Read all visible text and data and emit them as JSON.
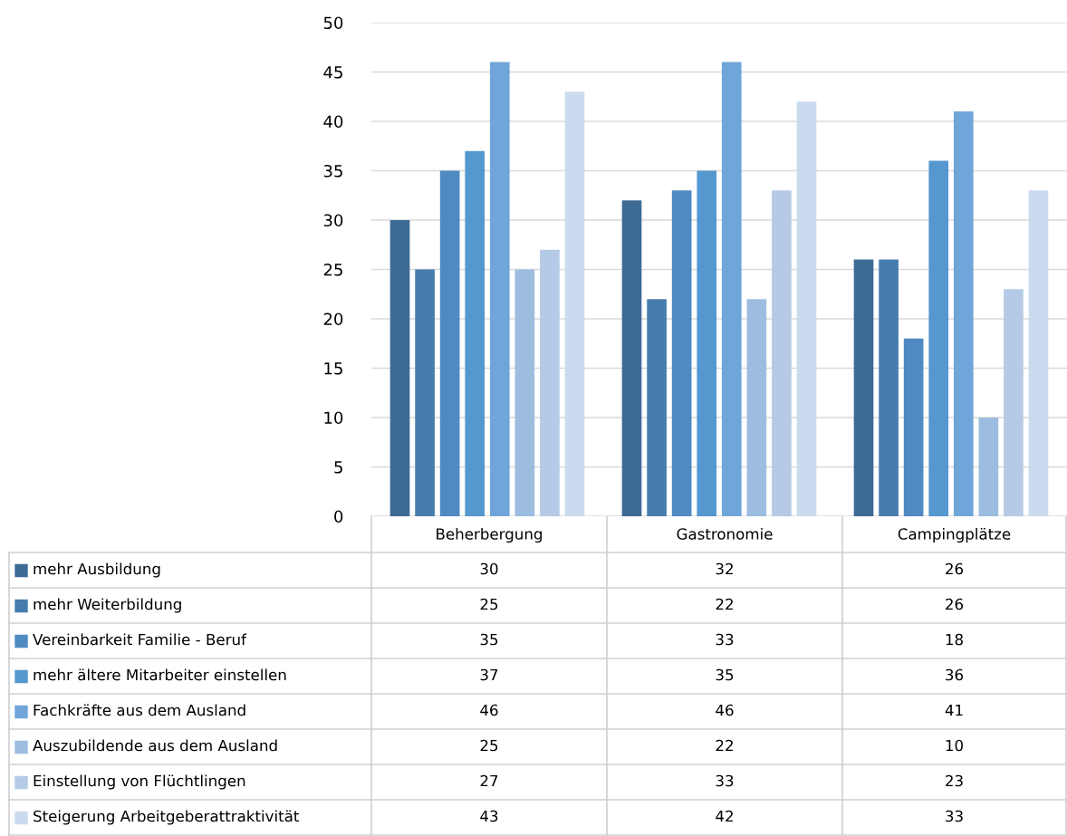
{
  "chart_data": {
    "type": "bar",
    "categories": [
      "Beherbergung",
      "Gastronomie",
      "Campingplätze"
    ],
    "series": [
      {
        "name": "mehr Ausbildung",
        "color": "#3e6a96",
        "values": [
          30,
          32,
          26
        ]
      },
      {
        "name": "mehr Weiterbildung",
        "color": "#477dae",
        "values": [
          25,
          22,
          26
        ]
      },
      {
        "name": "Vereinbarkeit Familie - Beruf",
        "color": "#4f8ac2",
        "values": [
          35,
          33,
          18
        ]
      },
      {
        "name": "mehr ältere Mitarbeiter einstellen",
        "color": "#5597cf",
        "values": [
          37,
          35,
          36
        ]
      },
      {
        "name": "Fachkräfte aus dem Ausland",
        "color": "#6fa5d8",
        "values": [
          46,
          46,
          41
        ]
      },
      {
        "name": "Auszubildende aus dem Ausland",
        "color": "#9dbde0",
        "values": [
          25,
          22,
          10
        ]
      },
      {
        "name": "Einstellung von Flüchtlingen",
        "color": "#b4cae6",
        "values": [
          27,
          33,
          23
        ]
      },
      {
        "name": "Steigerung Arbeitgeberattraktivität",
        "color": "#cbdaef",
        "values": [
          43,
          42,
          33
        ]
      }
    ],
    "ylim": [
      0,
      50
    ],
    "yticks": [
      0,
      5,
      10,
      15,
      20,
      25,
      30,
      35,
      40,
      45,
      50
    ],
    "grid": "y",
    "data_labels": true,
    "legend": "bottom"
  }
}
